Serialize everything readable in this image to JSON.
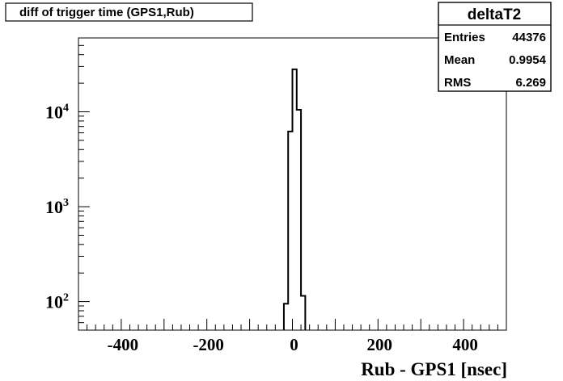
{
  "title": "diff of trigger time (GPS1,Rub)",
  "stats": {
    "name": "deltaT2",
    "rows": [
      {
        "label": "Entries",
        "value": "44376"
      },
      {
        "label": "Mean",
        "value": "0.9954"
      },
      {
        "label": "RMS",
        "value": "6.269"
      }
    ]
  },
  "chart_data": {
    "type": "bar",
    "title": "diff of trigger time (GPS1,Rub)",
    "xlabel": "Rub - GPS1 [nsec]",
    "ylabel": "",
    "xlim": [
      -500,
      500
    ],
    "ylim": [
      50,
      60000
    ],
    "yscale": "log",
    "grid": false,
    "x_ticks": [
      -400,
      -200,
      0,
      200,
      400
    ],
    "x_tick_labels": [
      "-400",
      "-200",
      "0",
      "200",
      "400"
    ],
    "y_ticks": [
      100,
      1000,
      10000
    ],
    "y_tick_base": "10",
    "y_tick_exponents": [
      "2",
      "3",
      "4"
    ],
    "bin_width": 10,
    "bins": [
      {
        "x0": -20,
        "x1": -10,
        "value": 95
      },
      {
        "x0": -10,
        "x1": 0,
        "value": 6200
      },
      {
        "x0": 0,
        "x1": 10,
        "value": 28000
      },
      {
        "x0": 10,
        "x1": 20,
        "value": 10500
      },
      {
        "x0": 20,
        "x1": 30,
        "value": 115
      }
    ]
  }
}
